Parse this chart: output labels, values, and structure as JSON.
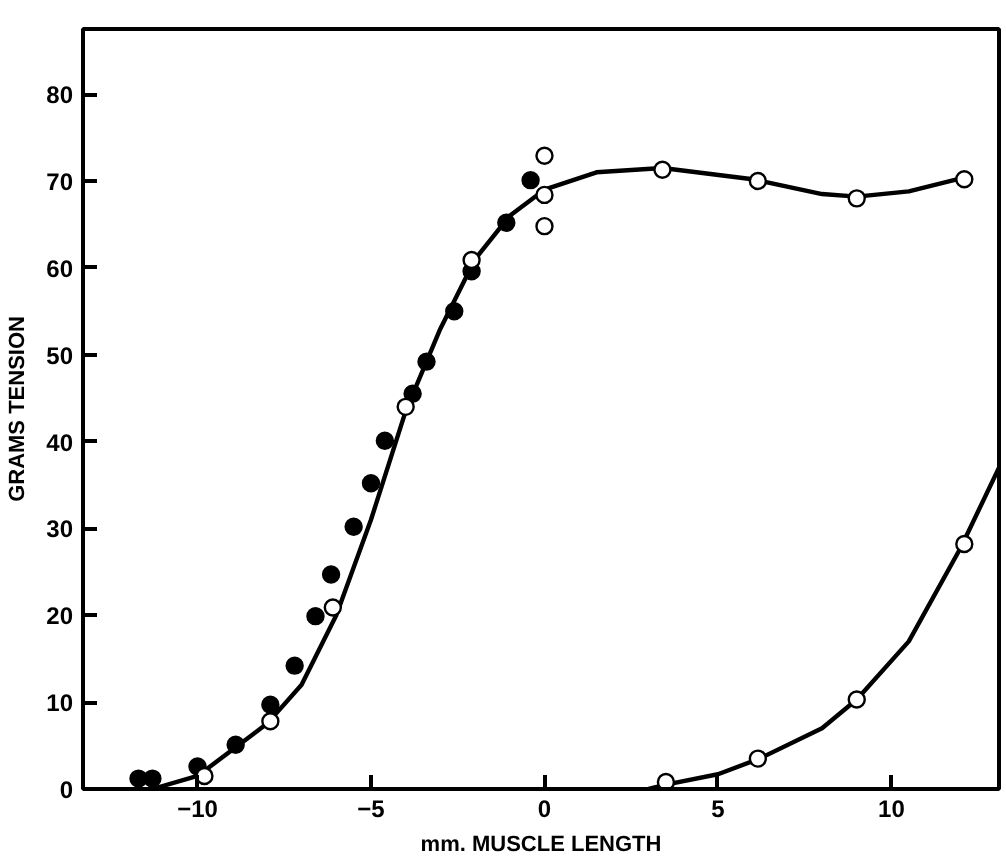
{
  "chart_data": {
    "type": "scatter",
    "xlabel": "mm. MUSCLE LENGTH",
    "ylabel": "GRAMS TENSION",
    "xlim": [
      -13.3,
      13.1
    ],
    "ylim": [
      0,
      87.5
    ],
    "xticks": [
      -10,
      -5,
      0,
      5,
      10
    ],
    "yticks": [
      0,
      10,
      20,
      30,
      40,
      50,
      60,
      70,
      80
    ],
    "grid": false,
    "series": [
      {
        "type": "line",
        "marker": "none",
        "color": "#000000",
        "x": [
          -11.3,
          -10,
          -8,
          -7,
          -6,
          -5,
          -4,
          -3,
          -2,
          -1,
          0,
          1.5,
          3.4,
          6,
          8,
          9,
          10.5,
          12
        ],
        "values": [
          0,
          1.5,
          7.5,
          12,
          20,
          31,
          43.5,
          53,
          61,
          66,
          69,
          71,
          71.5,
          70.2,
          68.5,
          68.2,
          68.8,
          70.3
        ]
      },
      {
        "type": "line",
        "marker": "none",
        "color": "#000000",
        "x": [
          3,
          3.5,
          5,
          6.2,
          8,
          9,
          10.5,
          12,
          13.1
        ],
        "values": [
          0,
          0.5,
          1.7,
          3.5,
          7,
          10.3,
          17,
          27.8,
          37
        ]
      },
      {
        "marker": "circle",
        "color": "#000000",
        "x": [
          -11.7,
          -11.3,
          -10,
          -8.9,
          -7.9,
          -7.2,
          -6.6,
          -6.15,
          -5.5,
          -5,
          -4.6,
          -3.8,
          -3.4,
          -2.6,
          -2.1,
          -1.1,
          -0.4
        ],
        "values": [
          1.2,
          1.2,
          2.6,
          5.1,
          9.7,
          14.2,
          19.9,
          24.7,
          30.2,
          35.2,
          40.1,
          45.5,
          49.2,
          55,
          59.6,
          65.2,
          70.1
        ]
      },
      {
        "marker": "circle",
        "color": "#ffffff",
        "x": [
          -9.8,
          -7.9,
          -6.1,
          -4,
          -2.1,
          0,
          0,
          0,
          3.4,
          6.15,
          9,
          12.1,
          3.5,
          6.15,
          9,
          12.1
        ],
        "values": [
          1.5,
          7.8,
          20.9,
          44,
          60.9,
          72.9,
          68.4,
          64.8,
          71.3,
          70,
          68,
          70.2,
          0.8,
          3.5,
          10.3,
          28.2
        ]
      }
    ]
  }
}
